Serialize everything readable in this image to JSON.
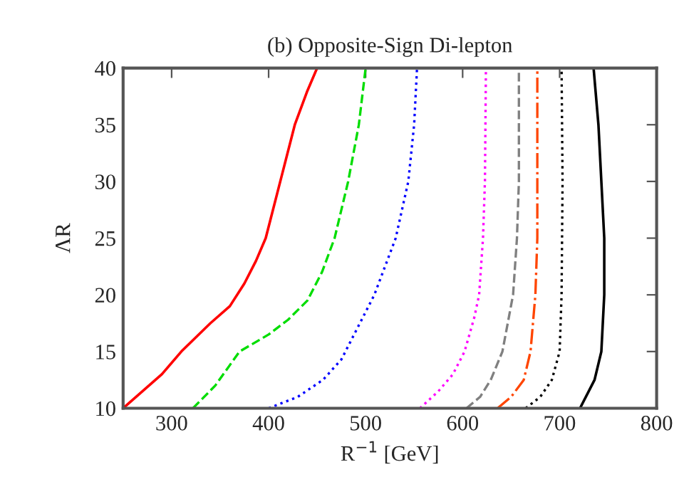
{
  "chart_data": {
    "type": "line",
    "title": "(b) Opposite-Sign Di-lepton",
    "xlabel": "R$^{−1}$ [GeV]",
    "ylabel": "ΛR",
    "xlim": [
      250,
      800
    ],
    "xticks": [
      {
        "value": 250,
        "label": null
      },
      300,
      400,
      500,
      600,
      700,
      800
    ],
    "ylim": [
      10,
      40
    ],
    "yticks": [
      10,
      15,
      20,
      25,
      30,
      35,
      40
    ],
    "grid": false,
    "legend": false,
    "marker": "none",
    "series": [
      {
        "color": "#ff0000",
        "line_style": "solid",
        "x": [
          250,
          290,
          310,
          340,
          360,
          375,
          387,
          397,
          412,
          427,
          440,
          450
        ],
        "values": [
          10,
          13,
          15,
          17.5,
          19,
          21,
          23,
          25,
          30,
          35,
          38,
          40
        ]
      },
      {
        "color": "#00dd00",
        "line_style": "dashed",
        "x": [
          322,
          345,
          370,
          400,
          420,
          440,
          455,
          468,
          482,
          493,
          500
        ],
        "values": [
          10,
          12,
          15,
          16.5,
          17.8,
          19.5,
          22,
          25,
          30,
          35,
          40
        ]
      },
      {
        "color": "#0000ff",
        "line_style": "dotted",
        "x": [
          400,
          430,
          456,
          475,
          509,
          531,
          544,
          550,
          553
        ],
        "values": [
          10,
          11,
          12.5,
          14.3,
          20,
          25,
          30,
          35,
          40
        ]
      },
      {
        "color": "#ff00ff",
        "line_style": "dotted",
        "x": [
          556,
          575,
          590,
          602,
          612,
          617,
          621,
          623,
          624
        ],
        "values": [
          10,
          11.5,
          13,
          15,
          18,
          20,
          25,
          30,
          40
        ]
      },
      {
        "color": "#808080",
        "line_style": "dashed",
        "x": [
          604,
          618,
          629,
          641,
          652,
          656,
          658,
          658
        ],
        "values": [
          10,
          11,
          12.5,
          15,
          20,
          25,
          30,
          40
        ]
      },
      {
        "color": "#ff4500",
        "line_style": "dashdot",
        "x": [
          636,
          650,
          663,
          670,
          675,
          677,
          677
        ],
        "values": [
          10,
          11,
          12.5,
          15,
          20,
          25,
          40
        ]
      },
      {
        "color": "#000000",
        "line_style": "dotted",
        "x": [
          665,
          680,
          692,
          700,
          702,
          703,
          702
        ],
        "values": [
          10,
          11,
          12.5,
          15,
          20,
          30,
          40
        ]
      },
      {
        "color": "#000000",
        "line_style": "solid",
        "x": [
          721,
          736,
          743,
          746,
          746,
          743,
          740,
          735
        ],
        "values": [
          10,
          12.5,
          15,
          20,
          25,
          30,
          35,
          40
        ]
      }
    ]
  }
}
